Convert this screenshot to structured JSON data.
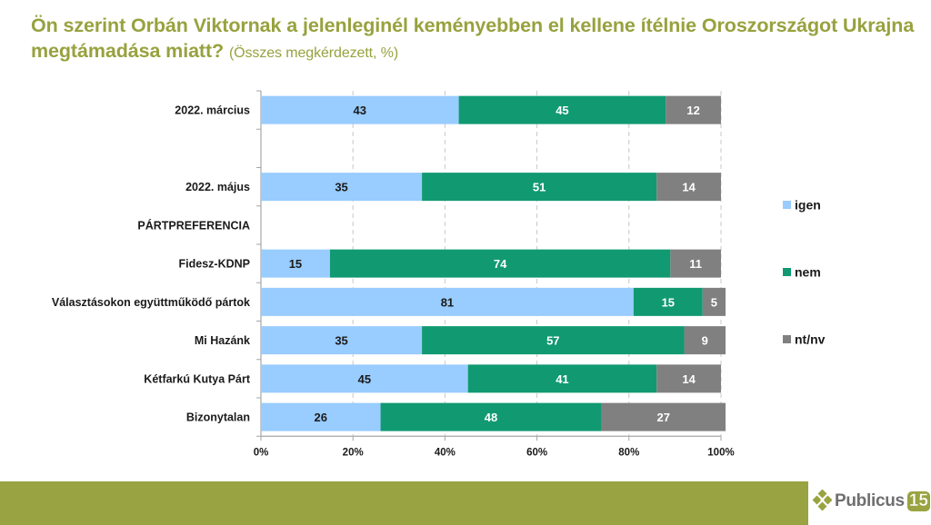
{
  "header": {
    "title": "Ön szerint Orbán Viktornak a jelenleginél keményebben el kellene ítélnie Oroszországot Ukrajna megtámadása miatt?",
    "subtitle": "(Összes megkérdezett, %)"
  },
  "colors": {
    "igen": "#99ccff",
    "nem": "#119a72",
    "ntnv": "#808080",
    "title": "#97a23e",
    "footer": "#99a341"
  },
  "chart_data": {
    "type": "bar",
    "orientation": "horizontal",
    "stacked": true,
    "percent_stacked": true,
    "title": "Ön szerint Orbán Viktornak a jelenleginél keményebben el kellene ítélnie Oroszországot Ukrajna megtámadása miatt?",
    "subtitle": "(Összes megkérdezett, %)",
    "categories": [
      "2022. március",
      "",
      "2022. május",
      "PÁRTPREFERENCIA",
      "Fidesz-KDNP",
      "Választásokon együttműködő pártok",
      "Mi Hazánk",
      "Kétfarkú Kutya Párt",
      "Bizonytalan"
    ],
    "series": [
      {
        "name": "igen",
        "color": "#99ccff",
        "label_color": "#1a1a1a",
        "values": [
          43,
          null,
          35,
          null,
          15,
          81,
          35,
          45,
          26
        ]
      },
      {
        "name": "nem",
        "color": "#119a72",
        "label_color": "#ffffff",
        "values": [
          45,
          null,
          51,
          null,
          74,
          15,
          57,
          41,
          48
        ]
      },
      {
        "name": "nt/nv",
        "color": "#808080",
        "label_color": "#ffffff",
        "values": [
          12,
          null,
          14,
          null,
          11,
          5,
          9,
          14,
          27
        ]
      }
    ],
    "xlabel": "",
    "ylabel": "",
    "xlim": [
      0,
      100
    ],
    "xticks": [
      "0%",
      "20%",
      "40%",
      "60%",
      "80%",
      "100%"
    ],
    "grid": "vertical dashed",
    "legend": {
      "position": "right",
      "entries": [
        "igen",
        "nem",
        "nt/nv"
      ]
    }
  },
  "footer": {
    "logo_text": "Publicus",
    "logo_number": "15"
  }
}
